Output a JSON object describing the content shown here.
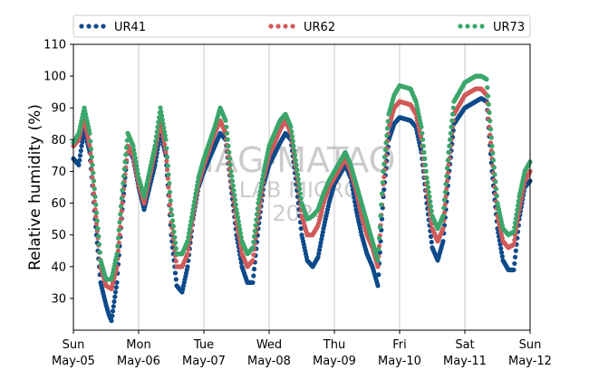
{
  "chart_data": {
    "type": "scatter",
    "ylabel": "Relative humidity (%)",
    "xlabel": "",
    "ylim": [
      20,
      110
    ],
    "yticks": [
      30,
      40,
      50,
      60,
      70,
      80,
      90,
      100,
      110
    ],
    "xlim": [
      "2024-05-05 00:00",
      "2024-05-12 00:00"
    ],
    "xticks": [
      {
        "date": "2024-05-05",
        "day": "Sun",
        "label": "May-05"
      },
      {
        "date": "2024-05-06",
        "day": "Mon",
        "label": "May-06"
      },
      {
        "date": "2024-05-07",
        "day": "Tue",
        "label": "May-07"
      },
      {
        "date": "2024-05-08",
        "day": "Wed",
        "label": "May-08"
      },
      {
        "date": "2024-05-09",
        "day": "Thu",
        "label": "May-09"
      },
      {
        "date": "2024-05-10",
        "day": "Fri",
        "label": "May-10"
      },
      {
        "date": "2024-05-11",
        "day": "Sat",
        "label": "May-11"
      },
      {
        "date": "2024-05-12",
        "day": "Sun",
        "label": "May-12"
      }
    ],
    "grid": "vertical",
    "legend_position": "top",
    "watermark": [
      "IAG-MATAO",
      "LAB MICRO",
      "2024"
    ],
    "series": [
      {
        "name": "UR41",
        "color": "#0d4a8a",
        "points": [
          [
            "2024-05-05 00:00",
            74
          ],
          [
            "2024-05-05 02:00",
            72
          ],
          [
            "2024-05-05 03:00",
            78
          ],
          [
            "2024-05-05 04:00",
            83
          ],
          [
            "2024-05-05 06:00",
            76
          ],
          [
            "2024-05-05 08:00",
            55
          ],
          [
            "2024-05-05 10:00",
            35
          ],
          [
            "2024-05-05 12:00",
            28
          ],
          [
            "2024-05-05 13:00",
            25
          ],
          [
            "2024-05-05 14:00",
            23
          ],
          [
            "2024-05-05 16:00",
            35
          ],
          [
            "2024-05-05 18:00",
            58
          ],
          [
            "2024-05-05 20:00",
            78
          ],
          [
            "2024-05-05 22:00",
            74
          ],
          [
            "2024-05-06 00:00",
            65
          ],
          [
            "2024-05-06 02:00",
            58
          ],
          [
            "2024-05-06 04:00",
            65
          ],
          [
            "2024-05-06 06:00",
            72
          ],
          [
            "2024-05-06 08:00",
            82
          ],
          [
            "2024-05-06 10:00",
            75
          ],
          [
            "2024-05-06 12:00",
            50
          ],
          [
            "2024-05-06 14:00",
            34
          ],
          [
            "2024-05-06 16:00",
            32
          ],
          [
            "2024-05-06 18:00",
            40
          ],
          [
            "2024-05-06 20:00",
            55
          ],
          [
            "2024-05-06 22:00",
            65
          ],
          [
            "2024-05-07 00:00",
            70
          ],
          [
            "2024-05-07 04:00",
            78
          ],
          [
            "2024-05-07 06:00",
            82
          ],
          [
            "2024-05-07 08:00",
            80
          ],
          [
            "2024-05-07 10:00",
            65
          ],
          [
            "2024-05-07 12:00",
            50
          ],
          [
            "2024-05-07 14:00",
            40
          ],
          [
            "2024-05-07 16:00",
            35
          ],
          [
            "2024-05-07 18:00",
            35
          ],
          [
            "2024-05-07 20:00",
            52
          ],
          [
            "2024-05-07 22:00",
            66
          ],
          [
            "2024-05-08 00:00",
            72
          ],
          [
            "2024-05-08 04:00",
            79
          ],
          [
            "2024-05-08 06:00",
            82
          ],
          [
            "2024-05-08 08:00",
            80
          ],
          [
            "2024-05-08 10:00",
            66
          ],
          [
            "2024-05-08 12:00",
            50
          ],
          [
            "2024-05-08 14:00",
            42
          ],
          [
            "2024-05-08 16:00",
            40
          ],
          [
            "2024-05-08 18:00",
            43
          ],
          [
            "2024-05-08 20:00",
            52
          ],
          [
            "2024-05-08 22:00",
            60
          ],
          [
            "2024-05-09 00:00",
            66
          ],
          [
            "2024-05-09 04:00",
            72
          ],
          [
            "2024-05-09 06:00",
            68
          ],
          [
            "2024-05-09 08:00",
            58
          ],
          [
            "2024-05-09 10:00",
            50
          ],
          [
            "2024-05-09 12:00",
            44
          ],
          [
            "2024-05-09 14:00",
            40
          ],
          [
            "2024-05-09 16:00",
            34
          ],
          [
            "2024-05-09 18:00",
            62
          ],
          [
            "2024-05-09 20:00",
            80
          ],
          [
            "2024-05-09 22:00",
            85
          ],
          [
            "2024-05-10 00:00",
            87
          ],
          [
            "2024-05-10 04:00",
            86
          ],
          [
            "2024-05-10 06:00",
            84
          ],
          [
            "2024-05-10 08:00",
            76
          ],
          [
            "2024-05-10 10:00",
            60
          ],
          [
            "2024-05-10 12:00",
            46
          ],
          [
            "2024-05-10 14:00",
            42
          ],
          [
            "2024-05-10 16:00",
            48
          ],
          [
            "2024-05-10 18:00",
            68
          ],
          [
            "2024-05-10 20:00",
            85
          ],
          [
            "2024-05-11 00:00",
            90
          ],
          [
            "2024-05-11 04:00",
            92
          ],
          [
            "2024-05-11 06:00",
            93
          ],
          [
            "2024-05-11 08:00",
            92
          ],
          [
            "2024-05-11 10:00",
            70
          ],
          [
            "2024-05-11 12:00",
            52
          ],
          [
            "2024-05-11 14:00",
            42
          ],
          [
            "2024-05-11 16:00",
            39
          ],
          [
            "2024-05-11 18:00",
            39
          ],
          [
            "2024-05-11 20:00",
            55
          ],
          [
            "2024-05-11 22:00",
            65
          ],
          [
            "2024-05-12 00:00",
            67
          ]
        ]
      },
      {
        "name": "UR62",
        "color": "#d05a5a",
        "points": [
          [
            "2024-05-05 00:00",
            78
          ],
          [
            "2024-05-05 02:00",
            80
          ],
          [
            "2024-05-05 03:00",
            84
          ],
          [
            "2024-05-05 04:00",
            86
          ],
          [
            "2024-05-05 06:00",
            78
          ],
          [
            "2024-05-05 08:00",
            58
          ],
          [
            "2024-05-05 10:00",
            40
          ],
          [
            "2024-05-05 12:00",
            34
          ],
          [
            "2024-05-05 14:00",
            33
          ],
          [
            "2024-05-05 16:00",
            40
          ],
          [
            "2024-05-05 18:00",
            60
          ],
          [
            "2024-05-05 20:00",
            78
          ],
          [
            "2024-05-05 22:00",
            75
          ],
          [
            "2024-05-06 00:00",
            66
          ],
          [
            "2024-05-06 02:00",
            60
          ],
          [
            "2024-05-06 04:00",
            68
          ],
          [
            "2024-05-06 06:00",
            76
          ],
          [
            "2024-05-06 08:00",
            86
          ],
          [
            "2024-05-06 10:00",
            76
          ],
          [
            "2024-05-06 12:00",
            54
          ],
          [
            "2024-05-06 14:00",
            40
          ],
          [
            "2024-05-06 16:00",
            40
          ],
          [
            "2024-05-06 18:00",
            44
          ],
          [
            "2024-05-06 20:00",
            56
          ],
          [
            "2024-05-06 22:00",
            66
          ],
          [
            "2024-05-07 00:00",
            72
          ],
          [
            "2024-05-07 04:00",
            82
          ],
          [
            "2024-05-07 06:00",
            86
          ],
          [
            "2024-05-07 08:00",
            82
          ],
          [
            "2024-05-07 10:00",
            67
          ],
          [
            "2024-05-07 12:00",
            54
          ],
          [
            "2024-05-07 14:00",
            44
          ],
          [
            "2024-05-07 16:00",
            40
          ],
          [
            "2024-05-07 18:00",
            42
          ],
          [
            "2024-05-07 20:00",
            56
          ],
          [
            "2024-05-07 22:00",
            68
          ],
          [
            "2024-05-08 00:00",
            75
          ],
          [
            "2024-05-08 04:00",
            83
          ],
          [
            "2024-05-08 06:00",
            86
          ],
          [
            "2024-05-08 08:00",
            82
          ],
          [
            "2024-05-08 10:00",
            70
          ],
          [
            "2024-05-08 12:00",
            56
          ],
          [
            "2024-05-08 14:00",
            50
          ],
          [
            "2024-05-08 16:00",
            50
          ],
          [
            "2024-05-08 18:00",
            53
          ],
          [
            "2024-05-08 20:00",
            60
          ],
          [
            "2024-05-08 22:00",
            65
          ],
          [
            "2024-05-09 00:00",
            68
          ],
          [
            "2024-05-09 04:00",
            74
          ],
          [
            "2024-05-09 06:00",
            70
          ],
          [
            "2024-05-09 08:00",
            64
          ],
          [
            "2024-05-09 10:00",
            56
          ],
          [
            "2024-05-09 12:00",
            50
          ],
          [
            "2024-05-09 14:00",
            46
          ],
          [
            "2024-05-09 16:00",
            40
          ],
          [
            "2024-05-09 18:00",
            66
          ],
          [
            "2024-05-09 20:00",
            84
          ],
          [
            "2024-05-09 22:00",
            90
          ],
          [
            "2024-05-10 00:00",
            92
          ],
          [
            "2024-05-10 04:00",
            91
          ],
          [
            "2024-05-10 06:00",
            88
          ],
          [
            "2024-05-10 08:00",
            80
          ],
          [
            "2024-05-10 10:00",
            64
          ],
          [
            "2024-05-10 12:00",
            52
          ],
          [
            "2024-05-10 14:00",
            48
          ],
          [
            "2024-05-10 16:00",
            52
          ],
          [
            "2024-05-10 18:00",
            72
          ],
          [
            "2024-05-10 20:00",
            88
          ],
          [
            "2024-05-11 00:00",
            94
          ],
          [
            "2024-05-11 04:00",
            96
          ],
          [
            "2024-05-11 06:00",
            96
          ],
          [
            "2024-05-11 08:00",
            94
          ],
          [
            "2024-05-11 10:00",
            74
          ],
          [
            "2024-05-11 12:00",
            56
          ],
          [
            "2024-05-11 14:00",
            48
          ],
          [
            "2024-05-11 16:00",
            46
          ],
          [
            "2024-05-11 18:00",
            47
          ],
          [
            "2024-05-11 20:00",
            58
          ],
          [
            "2024-05-11 22:00",
            67
          ],
          [
            "2024-05-12 00:00",
            70
          ]
        ]
      },
      {
        "name": "UR73",
        "color": "#3aa66a",
        "points": [
          [
            "2024-05-05 00:00",
            79
          ],
          [
            "2024-05-05 02:00",
            82
          ],
          [
            "2024-05-05 03:00",
            86
          ],
          [
            "2024-05-05 04:00",
            90
          ],
          [
            "2024-05-05 06:00",
            82
          ],
          [
            "2024-05-05 08:00",
            62
          ],
          [
            "2024-05-05 10:00",
            42
          ],
          [
            "2024-05-05 12:00",
            36
          ],
          [
            "2024-05-05 14:00",
            36
          ],
          [
            "2024-05-05 16:00",
            44
          ],
          [
            "2024-05-05 18:00",
            64
          ],
          [
            "2024-05-05 20:00",
            82
          ],
          [
            "2024-05-05 22:00",
            78
          ],
          [
            "2024-05-06 00:00",
            68
          ],
          [
            "2024-05-06 02:00",
            62
          ],
          [
            "2024-05-06 04:00",
            70
          ],
          [
            "2024-05-06 06:00",
            78
          ],
          [
            "2024-05-06 08:00",
            90
          ],
          [
            "2024-05-06 10:00",
            80
          ],
          [
            "2024-05-06 12:00",
            58
          ],
          [
            "2024-05-06 14:00",
            44
          ],
          [
            "2024-05-06 16:00",
            44
          ],
          [
            "2024-05-06 18:00",
            48
          ],
          [
            "2024-05-06 20:00",
            58
          ],
          [
            "2024-05-06 22:00",
            68
          ],
          [
            "2024-05-07 00:00",
            74
          ],
          [
            "2024-05-07 04:00",
            84
          ],
          [
            "2024-05-07 06:00",
            90
          ],
          [
            "2024-05-07 08:00",
            86
          ],
          [
            "2024-05-07 10:00",
            70
          ],
          [
            "2024-05-07 12:00",
            58
          ],
          [
            "2024-05-07 14:00",
            48
          ],
          [
            "2024-05-07 16:00",
            44
          ],
          [
            "2024-05-07 18:00",
            46
          ],
          [
            "2024-05-07 20:00",
            60
          ],
          [
            "2024-05-07 22:00",
            70
          ],
          [
            "2024-05-08 00:00",
            78
          ],
          [
            "2024-05-08 04:00",
            86
          ],
          [
            "2024-05-08 06:00",
            88
          ],
          [
            "2024-05-08 08:00",
            84
          ],
          [
            "2024-05-08 10:00",
            72
          ],
          [
            "2024-05-08 12:00",
            60
          ],
          [
            "2024-05-08 14:00",
            55
          ],
          [
            "2024-05-08 16:00",
            56
          ],
          [
            "2024-05-08 18:00",
            58
          ],
          [
            "2024-05-08 20:00",
            63
          ],
          [
            "2024-05-08 22:00",
            67
          ],
          [
            "2024-05-09 00:00",
            70
          ],
          [
            "2024-05-09 04:00",
            76
          ],
          [
            "2024-05-09 06:00",
            72
          ],
          [
            "2024-05-09 08:00",
            66
          ],
          [
            "2024-05-09 10:00",
            60
          ],
          [
            "2024-05-09 12:00",
            54
          ],
          [
            "2024-05-09 14:00",
            48
          ],
          [
            "2024-05-09 16:00",
            42
          ],
          [
            "2024-05-09 18:00",
            70
          ],
          [
            "2024-05-09 20:00",
            88
          ],
          [
            "2024-05-09 22:00",
            94
          ],
          [
            "2024-05-10 00:00",
            97
          ],
          [
            "2024-05-10 04:00",
            96
          ],
          [
            "2024-05-10 06:00",
            92
          ],
          [
            "2024-05-10 08:00",
            84
          ],
          [
            "2024-05-10 10:00",
            68
          ],
          [
            "2024-05-10 12:00",
            56
          ],
          [
            "2024-05-10 14:00",
            52
          ],
          [
            "2024-05-10 16:00",
            56
          ],
          [
            "2024-05-10 18:00",
            76
          ],
          [
            "2024-05-10 20:00",
            92
          ],
          [
            "2024-05-11 00:00",
            98
          ],
          [
            "2024-05-11 04:00",
            100
          ],
          [
            "2024-05-11 06:00",
            100
          ],
          [
            "2024-05-11 08:00",
            99
          ],
          [
            "2024-05-11 10:00",
            78
          ],
          [
            "2024-05-11 12:00",
            60
          ],
          [
            "2024-05-11 14:00",
            52
          ],
          [
            "2024-05-11 16:00",
            50
          ],
          [
            "2024-05-11 18:00",
            51
          ],
          [
            "2024-05-11 20:00",
            62
          ],
          [
            "2024-05-11 22:00",
            70
          ],
          [
            "2024-05-12 00:00",
            73
          ]
        ]
      }
    ]
  }
}
